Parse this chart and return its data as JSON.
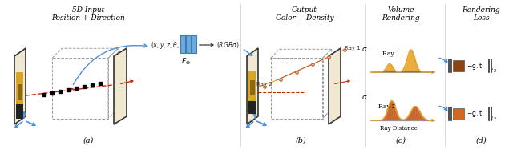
{
  "fig_width": 6.4,
  "fig_height": 1.87,
  "dpi": 100,
  "bg_color": "#ffffff",
  "title_a": "5D Input\nPosition + Direction",
  "title_b": "Output\nColor + Density",
  "title_c": "Volume\nRendering",
  "title_d": "Rendering\nLoss",
  "label_a": "(a)",
  "label_b": "(b)",
  "label_c": "(c)",
  "label_d": "(d)",
  "formula_input": "$(x,y,z,\\theta,\\phi)$",
  "formula_output": "$(RGB\\sigma)$",
  "formula_network": "$F_{\\Theta}$",
  "blue_color": "#4A90D9",
  "orange_color": "#E8A020",
  "dark_orange": "#C05010",
  "red_color": "#CC2200",
  "brown_color": "#8B4513",
  "ray1_label": "Ray 1",
  "ray2_label": "Ray 2",
  "ray_distance_label": "Ray Distance"
}
